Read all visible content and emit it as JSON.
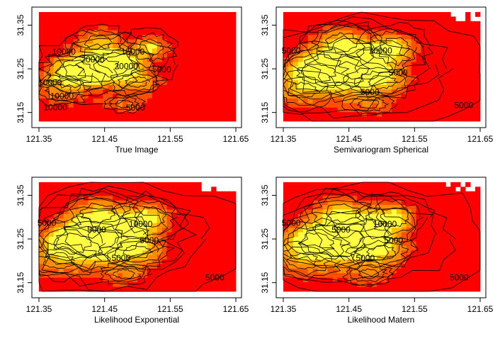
{
  "chart_data": [
    {
      "type": "heatmap",
      "title": "",
      "xlabel": "True Image",
      "ylabel": "",
      "x_ticks": [
        121.35,
        121.45,
        121.55,
        121.65
      ],
      "y_ticks": [
        31.15,
        31.25,
        31.35
      ],
      "xlim": [
        121.35,
        121.65
      ],
      "ylim": [
        31.13,
        31.38
      ],
      "contour_labels": [
        {
          "text": "10000",
          "x": 121.388,
          "y": 31.283
        },
        {
          "text": "20000",
          "x": 121.432,
          "y": 31.265
        },
        {
          "text": "15000",
          "x": 121.493,
          "y": 31.283
        },
        {
          "text": "20000",
          "x": 121.483,
          "y": 31.249
        },
        {
          "text": "5000",
          "x": 121.537,
          "y": 31.242
        },
        {
          "text": "10000",
          "x": 121.367,
          "y": 31.212
        },
        {
          "text": "10000",
          "x": 121.385,
          "y": 31.181
        },
        {
          "text": "10000",
          "x": 121.375,
          "y": 31.155
        },
        {
          "text": "5000",
          "x": 121.497,
          "y": 31.154
        }
      ]
    },
    {
      "type": "heatmap",
      "title": "",
      "xlabel": "Semivariogram Spherical",
      "ylabel": "",
      "x_ticks": [
        121.35,
        121.45,
        121.55,
        121.65
      ],
      "y_ticks": [
        31.15,
        31.25,
        31.35
      ],
      "xlim": [
        121.35,
        121.65
      ],
      "ylim": [
        31.13,
        31.38
      ],
      "contour_labels": [
        {
          "text": "10000",
          "x": 121.498,
          "y": 31.285
        },
        {
          "text": "5000",
          "x": 121.362,
          "y": 31.285
        },
        {
          "text": "5000",
          "x": 121.525,
          "y": 31.235
        },
        {
          "text": "5000",
          "x": 121.482,
          "y": 31.19
        },
        {
          "text": "5000",
          "x": 121.625,
          "y": 31.16
        }
      ]
    },
    {
      "type": "heatmap",
      "title": "",
      "xlabel": "Likelihood Exponential",
      "ylabel": "",
      "x_ticks": [
        121.35,
        121.45,
        121.55,
        121.65
      ],
      "y_ticks": [
        31.15,
        31.25,
        31.35
      ],
      "xlim": [
        121.35,
        121.65
      ],
      "ylim": [
        31.13,
        31.38
      ],
      "contour_labels": [
        {
          "text": "10000",
          "x": 121.505,
          "y": 31.278
        },
        {
          "text": "5000",
          "x": 121.438,
          "y": 31.265
        },
        {
          "text": "5000",
          "x": 121.362,
          "y": 31.28
        },
        {
          "text": "5000",
          "x": 121.518,
          "y": 31.24
        },
        {
          "text": "5000",
          "x": 121.475,
          "y": 31.2
        },
        {
          "text": "5000",
          "x": 121.618,
          "y": 31.155
        }
      ]
    },
    {
      "type": "heatmap",
      "title": "",
      "xlabel": "Likelihood Matern",
      "ylabel": "",
      "x_ticks": [
        121.35,
        121.45,
        121.55,
        121.65
      ],
      "y_ticks": [
        31.15,
        31.25,
        31.35
      ],
      "xlim": [
        121.35,
        121.65
      ],
      "ylim": [
        31.13,
        31.38
      ],
      "contour_labels": [
        {
          "text": "10000",
          "x": 121.505,
          "y": 31.278
        },
        {
          "text": "5000",
          "x": 121.438,
          "y": 31.265
        },
        {
          "text": "5000",
          "x": 121.362,
          "y": 31.28
        },
        {
          "text": "5000",
          "x": 121.518,
          "y": 31.24
        },
        {
          "text": "5000",
          "x": 121.475,
          "y": 31.2
        },
        {
          "text": "5000",
          "x": 121.618,
          "y": 31.155
        }
      ]
    }
  ],
  "colors": {
    "background": "#ffffff",
    "low": "#ff0000",
    "mid_low": "#ff5000",
    "mid": "#ff8c00",
    "mid_high": "#ffc000",
    "high": "#ffff40",
    "contour": "#000000"
  }
}
